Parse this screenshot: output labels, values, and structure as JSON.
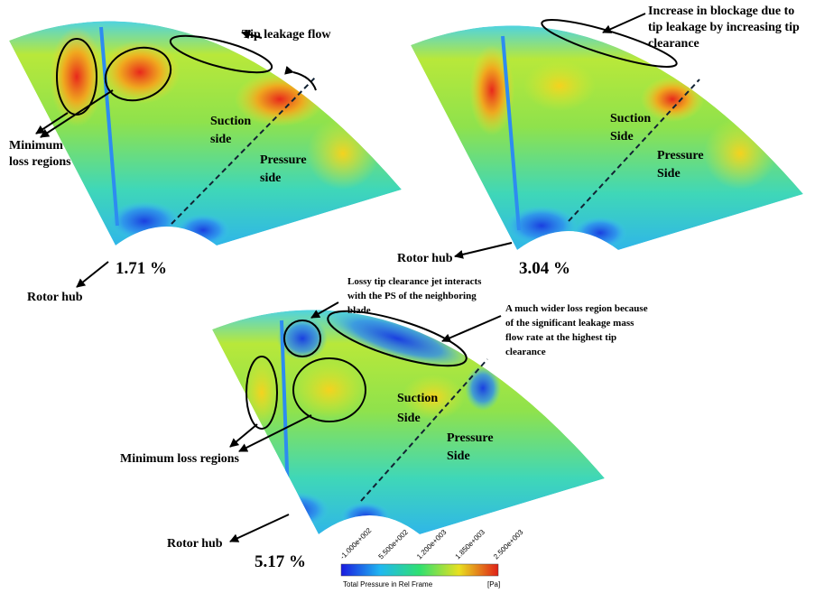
{
  "panels": [
    {
      "label": "1.71 %",
      "tip": "Tip leakage flow",
      "minimum": [
        "Minimum",
        "loss regions"
      ],
      "suction": [
        "Suction",
        "side"
      ],
      "pressure": [
        "Pressure",
        "side"
      ],
      "hub": "Rotor hub"
    },
    {
      "label": "3.04 %",
      "blockage": [
        "Increase in blockage due to",
        "tip leakage by increasing tip",
        "clearance"
      ],
      "suction": [
        "Suction",
        "Side"
      ],
      "pressure": [
        "Pressure",
        "Side"
      ],
      "hub": "Rotor hub"
    },
    {
      "label": "5.17 %",
      "lossy": [
        "Lossy tip clearance jet interacts",
        "with the PS of the neighboring",
        "blade"
      ],
      "wider": [
        "A much wider loss region because",
        "of the significant leakage mass",
        "flow rate at the highest tip",
        "clearance"
      ],
      "minimum": "Minimum loss regions",
      "suction": [
        "Suction",
        "Side"
      ],
      "pressure": [
        "Pressure",
        "Side"
      ],
      "hub": "Rotor hub"
    }
  ],
  "colorbar": {
    "ticks": [
      "-1.000e+002",
      "5.500e+002",
      "1.200e+003",
      "1.850e+003",
      "2.500e+003"
    ],
    "title": "Total Pressure in Rel Frame",
    "unit": "[Pa]"
  }
}
